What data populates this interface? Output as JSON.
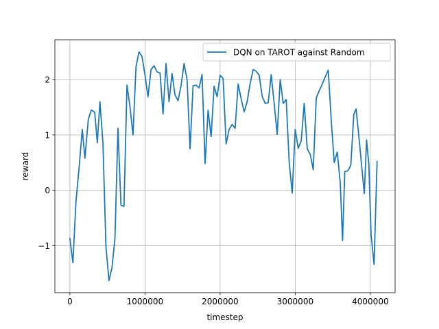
{
  "chart_data": {
    "type": "line",
    "xlabel": "timestep",
    "ylabel": "reward",
    "xlim": [
      -200000,
      4330000
    ],
    "ylim": [
      -1.85,
      2.72
    ],
    "xticks": [
      0,
      1000000,
      2000000,
      3000000,
      4000000
    ],
    "xtick_labels": [
      "0",
      "1000000",
      "2000000",
      "3000000",
      "4000000"
    ],
    "yticks": [
      -1,
      0,
      1,
      2
    ],
    "ytick_labels": [
      "−1",
      "0",
      "1",
      "2"
    ],
    "grid": true,
    "legend_position": "top-right",
    "colors": {
      "series": "#1f77b4",
      "grid": "#b0b0b0",
      "axis": "#000000"
    },
    "series": [
      {
        "name": "DQN on TAROT against Random",
        "points": [
          [
            0,
            -0.87
          ],
          [
            40000,
            -1.31
          ],
          [
            80000,
            -0.22
          ],
          [
            125000,
            0.45
          ],
          [
            165000,
            1.1
          ],
          [
            200000,
            0.58
          ],
          [
            245000,
            1.28
          ],
          [
            285000,
            1.45
          ],
          [
            330000,
            1.41
          ],
          [
            365000,
            0.86
          ],
          [
            400000,
            1.6
          ],
          [
            440000,
            0.85
          ],
          [
            480000,
            -1.02
          ],
          [
            520000,
            -1.63
          ],
          [
            560000,
            -1.4
          ],
          [
            600000,
            -0.87
          ],
          [
            640000,
            1.12
          ],
          [
            680000,
            -0.27
          ],
          [
            720000,
            -0.29
          ],
          [
            760000,
            1.9
          ],
          [
            800000,
            1.51
          ],
          [
            840000,
            1.0
          ],
          [
            880000,
            2.23
          ],
          [
            920000,
            2.5
          ],
          [
            960000,
            2.42
          ],
          [
            1000000,
            2.08
          ],
          [
            1040000,
            1.69
          ],
          [
            1080000,
            2.18
          ],
          [
            1120000,
            2.25
          ],
          [
            1160000,
            2.14
          ],
          [
            1200000,
            2.12
          ],
          [
            1240000,
            1.38
          ],
          [
            1280000,
            2.29
          ],
          [
            1320000,
            1.6
          ],
          [
            1360000,
            2.11
          ],
          [
            1400000,
            1.72
          ],
          [
            1440000,
            1.62
          ],
          [
            1480000,
            1.89
          ],
          [
            1520000,
            2.29
          ],
          [
            1560000,
            2.0
          ],
          [
            1600000,
            0.75
          ],
          [
            1640000,
            1.89
          ],
          [
            1680000,
            1.9
          ],
          [
            1720000,
            1.85
          ],
          [
            1760000,
            2.09
          ],
          [
            1800000,
            0.48
          ],
          [
            1840000,
            1.45
          ],
          [
            1880000,
            0.97
          ],
          [
            1920000,
            1.88
          ],
          [
            1960000,
            1.69
          ],
          [
            2000000,
            2.08
          ],
          [
            2040000,
            2.02
          ],
          [
            2080000,
            0.84
          ],
          [
            2120000,
            1.1
          ],
          [
            2160000,
            1.19
          ],
          [
            2200000,
            1.12
          ],
          [
            2240000,
            1.92
          ],
          [
            2280000,
            1.65
          ],
          [
            2320000,
            1.42
          ],
          [
            2360000,
            1.6
          ],
          [
            2400000,
            1.93
          ],
          [
            2440000,
            2.18
          ],
          [
            2480000,
            2.15
          ],
          [
            2520000,
            2.08
          ],
          [
            2560000,
            1.7
          ],
          [
            2600000,
            1.57
          ],
          [
            2640000,
            1.58
          ],
          [
            2680000,
            2.09
          ],
          [
            2720000,
            1.57
          ],
          [
            2760000,
            1.01
          ],
          [
            2800000,
            2.0
          ],
          [
            2840000,
            1.57
          ],
          [
            2880000,
            1.64
          ],
          [
            2920000,
            0.5
          ],
          [
            2960000,
            -0.05
          ],
          [
            3000000,
            1.1
          ],
          [
            3040000,
            0.76
          ],
          [
            3080000,
            0.89
          ],
          [
            3120000,
            1.57
          ],
          [
            3160000,
            0.75
          ],
          [
            3200000,
            0.65
          ],
          [
            3240000,
            0.37
          ],
          [
            3280000,
            1.67
          ],
          [
            3320000,
            1.8
          ],
          [
            3360000,
            1.92
          ],
          [
            3400000,
            2.05
          ],
          [
            3440000,
            2.17
          ],
          [
            3480000,
            1.26
          ],
          [
            3520000,
            0.5
          ],
          [
            3560000,
            0.69
          ],
          [
            3600000,
            0.13
          ],
          [
            3630000,
            -0.91
          ],
          [
            3660000,
            0.34
          ],
          [
            3700000,
            0.35
          ],
          [
            3740000,
            0.45
          ],
          [
            3780000,
            1.37
          ],
          [
            3810000,
            1.47
          ],
          [
            3850000,
            0.94
          ],
          [
            3890000,
            0.36
          ],
          [
            3920000,
            -0.06
          ],
          [
            3950000,
            0.91
          ],
          [
            3980000,
            0.47
          ],
          [
            4010000,
            -0.8
          ],
          [
            4050000,
            -1.34
          ],
          [
            4090000,
            0.52
          ]
        ]
      }
    ]
  }
}
